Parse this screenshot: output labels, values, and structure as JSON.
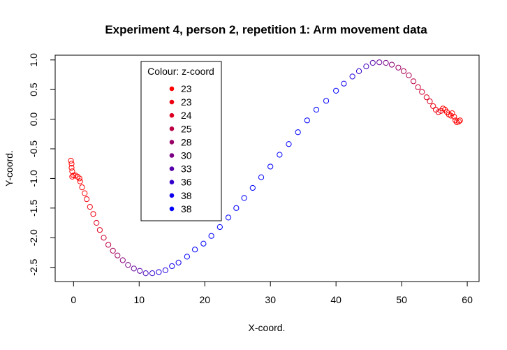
{
  "chart_data": {
    "type": "scatter",
    "title": "Experiment 4, person 2, repetition 1: Arm movement data",
    "xlabel": "X-coord.",
    "ylabel": "Y-coord.",
    "xlim": [
      -2.8,
      61.8
    ],
    "ylim": [
      -2.74,
      1.08
    ],
    "x_ticks": [
      0,
      10,
      20,
      30,
      40,
      50,
      60
    ],
    "x_tick_labels": [
      "0",
      "10",
      "20",
      "30",
      "40",
      "50",
      "60"
    ],
    "y_ticks": [
      1.0,
      0.5,
      0.0,
      -0.5,
      -1.0,
      -1.5,
      -2.0,
      -2.5
    ],
    "y_tick_labels": [
      "1.0",
      "0.5",
      "0.0",
      "-0.5",
      "-1.0",
      "-1.5",
      "-2.0",
      "-2.5"
    ],
    "grid": false,
    "marker": "open-circle",
    "color_scale": {
      "low": "#ff0000",
      "high": "#0000ff",
      "z_min": 23,
      "z_max": 38
    },
    "legend": {
      "title": "Colour: z-coord",
      "placement": "top-left-inside",
      "entries": [
        {
          "label": "23",
          "color": "#ff0000"
        },
        {
          "label": "23",
          "color": "#ee0011"
        },
        {
          "label": "24",
          "color": "#dd0022"
        },
        {
          "label": "25",
          "color": "#bb0044"
        },
        {
          "label": "28",
          "color": "#990066"
        },
        {
          "label": "30",
          "color": "#7a0085"
        },
        {
          "label": "33",
          "color": "#5500aa"
        },
        {
          "label": "36",
          "color": "#3300cc"
        },
        {
          "label": "38",
          "color": "#1100ee"
        },
        {
          "label": "38",
          "color": "#0000ff"
        }
      ]
    },
    "points": [
      {
        "x": -0.4,
        "y": -0.7,
        "z": 23
      },
      {
        "x": -0.3,
        "y": -0.75,
        "z": 23
      },
      {
        "x": -0.3,
        "y": -0.82,
        "z": 23
      },
      {
        "x": -0.2,
        "y": -0.88,
        "z": 23
      },
      {
        "x": 0.0,
        "y": -0.95,
        "z": 23
      },
      {
        "x": -0.2,
        "y": -0.97,
        "z": 23
      },
      {
        "x": 0.3,
        "y": -0.95,
        "z": 23
      },
      {
        "x": 0.6,
        "y": -0.97,
        "z": 23
      },
      {
        "x": 0.9,
        "y": -1.0,
        "z": 23
      },
      {
        "x": 1.0,
        "y": -1.05,
        "z": 23
      },
      {
        "x": 1.3,
        "y": -1.15,
        "z": 23
      },
      {
        "x": 1.7,
        "y": -1.25,
        "z": 23
      },
      {
        "x": 2.0,
        "y": -1.35,
        "z": 24
      },
      {
        "x": 2.5,
        "y": -1.48,
        "z": 24
      },
      {
        "x": 3.0,
        "y": -1.6,
        "z": 24
      },
      {
        "x": 3.5,
        "y": -1.75,
        "z": 25
      },
      {
        "x": 4.0,
        "y": -1.87,
        "z": 25
      },
      {
        "x": 4.6,
        "y": -2.0,
        "z": 26
      },
      {
        "x": 5.3,
        "y": -2.12,
        "z": 27
      },
      {
        "x": 6.0,
        "y": -2.22,
        "z": 28
      },
      {
        "x": 6.7,
        "y": -2.3,
        "z": 29
      },
      {
        "x": 7.5,
        "y": -2.38,
        "z": 30
      },
      {
        "x": 8.3,
        "y": -2.46,
        "z": 31
      },
      {
        "x": 9.2,
        "y": -2.52,
        "z": 32
      },
      {
        "x": 10.1,
        "y": -2.56,
        "z": 33
      },
      {
        "x": 11.0,
        "y": -2.6,
        "z": 34
      },
      {
        "x": 12.0,
        "y": -2.6,
        "z": 35
      },
      {
        "x": 13.0,
        "y": -2.58,
        "z": 36
      },
      {
        "x": 14.0,
        "y": -2.55,
        "z": 36
      },
      {
        "x": 15.0,
        "y": -2.48,
        "z": 37
      },
      {
        "x": 16.0,
        "y": -2.42,
        "z": 37
      },
      {
        "x": 17.3,
        "y": -2.32,
        "z": 38
      },
      {
        "x": 18.5,
        "y": -2.2,
        "z": 38
      },
      {
        "x": 19.8,
        "y": -2.1,
        "z": 38
      },
      {
        "x": 21.0,
        "y": -1.97,
        "z": 38
      },
      {
        "x": 22.3,
        "y": -1.82,
        "z": 38
      },
      {
        "x": 23.6,
        "y": -1.66,
        "z": 38
      },
      {
        "x": 24.8,
        "y": -1.5,
        "z": 38
      },
      {
        "x": 26.0,
        "y": -1.33,
        "z": 38
      },
      {
        "x": 27.3,
        "y": -1.16,
        "z": 38
      },
      {
        "x": 28.6,
        "y": -0.98,
        "z": 38
      },
      {
        "x": 30.0,
        "y": -0.8,
        "z": 38
      },
      {
        "x": 31.4,
        "y": -0.6,
        "z": 38
      },
      {
        "x": 32.8,
        "y": -0.42,
        "z": 38
      },
      {
        "x": 34.2,
        "y": -0.22,
        "z": 38
      },
      {
        "x": 35.6,
        "y": -0.02,
        "z": 38
      },
      {
        "x": 37.0,
        "y": 0.16,
        "z": 38
      },
      {
        "x": 38.5,
        "y": 0.31,
        "z": 38
      },
      {
        "x": 40.0,
        "y": 0.48,
        "z": 38
      },
      {
        "x": 41.2,
        "y": 0.6,
        "z": 37
      },
      {
        "x": 42.5,
        "y": 0.72,
        "z": 36
      },
      {
        "x": 43.5,
        "y": 0.81,
        "z": 35
      },
      {
        "x": 44.6,
        "y": 0.89,
        "z": 34
      },
      {
        "x": 45.6,
        "y": 0.95,
        "z": 33
      },
      {
        "x": 46.6,
        "y": 0.96,
        "z": 32
      },
      {
        "x": 47.6,
        "y": 0.95,
        "z": 31
      },
      {
        "x": 48.5,
        "y": 0.92,
        "z": 30
      },
      {
        "x": 49.5,
        "y": 0.87,
        "z": 29
      },
      {
        "x": 50.3,
        "y": 0.81,
        "z": 28
      },
      {
        "x": 51.1,
        "y": 0.74,
        "z": 28
      },
      {
        "x": 51.8,
        "y": 0.64,
        "z": 27
      },
      {
        "x": 52.5,
        "y": 0.54,
        "z": 26
      },
      {
        "x": 53.1,
        "y": 0.46,
        "z": 26
      },
      {
        "x": 53.8,
        "y": 0.37,
        "z": 25
      },
      {
        "x": 54.3,
        "y": 0.3,
        "z": 25
      },
      {
        "x": 54.8,
        "y": 0.22,
        "z": 24
      },
      {
        "x": 55.2,
        "y": 0.16,
        "z": 24
      },
      {
        "x": 55.6,
        "y": 0.12,
        "z": 24
      },
      {
        "x": 56.0,
        "y": 0.14,
        "z": 24
      },
      {
        "x": 56.3,
        "y": 0.18,
        "z": 23
      },
      {
        "x": 56.6,
        "y": 0.16,
        "z": 23
      },
      {
        "x": 56.9,
        "y": 0.12,
        "z": 23
      },
      {
        "x": 57.2,
        "y": 0.08,
        "z": 23
      },
      {
        "x": 57.5,
        "y": 0.06,
        "z": 23
      },
      {
        "x": 57.7,
        "y": 0.1,
        "z": 23
      },
      {
        "x": 58.0,
        "y": 0.04,
        "z": 23
      },
      {
        "x": 58.2,
        "y": -0.02,
        "z": 23
      },
      {
        "x": 58.4,
        "y": -0.05,
        "z": 23
      },
      {
        "x": 58.7,
        "y": -0.04,
        "z": 23
      },
      {
        "x": 58.9,
        "y": -0.02,
        "z": 23
      }
    ]
  }
}
